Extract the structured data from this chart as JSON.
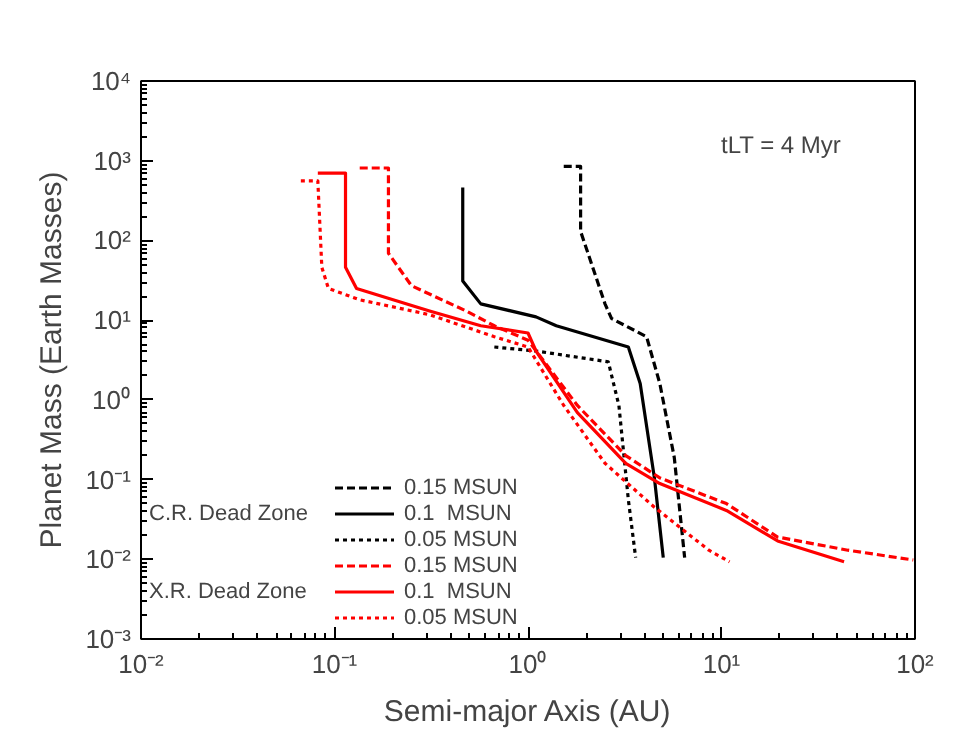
{
  "chart_data": {
    "type": "line",
    "xlabel": "Semi-major Axis (AU)",
    "ylabel": "Planet Mass (Earth Masses)",
    "annotations": [
      "tLT = 4 Myr",
      "C.R. Dead Zone",
      "X.R. Dead Zone"
    ],
    "log": "xy",
    "xlim": [
      0.01,
      100
    ],
    "ylim": [
      0.001,
      10000
    ],
    "xticks": [
      {
        "value": 0.01,
        "label": "10⁻²"
      },
      {
        "value": 0.1,
        "label": "10⁻¹"
      },
      {
        "value": 1,
        "label": "10⁰"
      },
      {
        "value": 10,
        "label": "10¹"
      },
      {
        "value": 100,
        "label": "10²"
      }
    ],
    "yticks": [
      {
        "value": 0.001,
        "label": "10⁻³"
      },
      {
        "value": 0.01,
        "label": "10⁻²"
      },
      {
        "value": 0.1,
        "label": "10⁻¹"
      },
      {
        "value": 1,
        "label": "10⁰"
      },
      {
        "value": 10,
        "label": "10¹"
      },
      {
        "value": 100,
        "label": "10²"
      },
      {
        "value": 1000,
        "label": "10³"
      },
      {
        "value": 10000,
        "label": "10⁴"
      }
    ],
    "grid": false,
    "legend": "bottom left",
    "series": [
      {
        "name": "0.15 MSUN",
        "color": "#000000",
        "line_style": "dashed",
        "x": [
          1.53,
          1.87,
          1.87,
          2.5,
          2.7,
          4.1,
          4.8,
          5.7,
          6.45
        ],
        "values": [
          850,
          850,
          130,
          16,
          10.5,
          6.2,
          1.6,
          0.19,
          0.0105
        ]
      },
      {
        "name": "0.1  MSUN",
        "color": "#000000",
        "line_style": "solid",
        "x": [
          0.46,
          0.46,
          0.57,
          1.1,
          1.4,
          3.3,
          3.8,
          4.5,
          5.0
        ],
        "values": [
          460,
          31,
          16,
          11,
          8.5,
          4.6,
          1.6,
          0.105,
          0.0105
        ]
      },
      {
        "name": "0.05 MSUN",
        "color": "#000000",
        "line_style": "dotted",
        "x": [
          0.67,
          1.1,
          2.6,
          2.95,
          3.3,
          3.6
        ],
        "values": [
          4.6,
          4.1,
          3.0,
          0.85,
          0.056,
          0.0105
        ]
      },
      {
        "name": "0.15 MSUN",
        "color": "#ff0000",
        "line_style": "dashed",
        "x": [
          0.135,
          0.19,
          0.19,
          0.25,
          0.48,
          0.67,
          1.0,
          1.8,
          3.2,
          4.8,
          10.6,
          19.5,
          45,
          98
        ],
        "values": [
          810,
          810,
          69,
          27,
          13,
          8.5,
          5.6,
          0.85,
          0.2,
          0.105,
          0.05,
          0.019,
          0.013,
          0.0098
        ]
      },
      {
        "name": "0.1  MSUN",
        "color": "#ff0000",
        "line_style": "solid",
        "x": [
          0.082,
          0.114,
          0.114,
          0.13,
          0.31,
          0.57,
          1.0,
          1.1,
          1.8,
          3.2,
          4.8,
          10.6,
          19.5,
          43
        ],
        "values": [
          700,
          700,
          46,
          25,
          13,
          8.5,
          6.9,
          4.1,
          0.69,
          0.16,
          0.089,
          0.041,
          0.017,
          0.0093
        ]
      },
      {
        "name": "0.05 MSUN",
        "color": "#ff0000",
        "line_style": "dotted",
        "x": [
          0.067,
          0.082,
          0.086,
          0.093,
          0.135,
          0.31,
          0.67,
          1.0,
          1.53,
          2.5,
          4.5,
          8.6,
          11
        ],
        "values": [
          560,
          560,
          46,
          25,
          18,
          11.7,
          6.2,
          4.6,
          0.85,
          0.16,
          0.045,
          0.013,
          0.0093
        ]
      }
    ]
  }
}
